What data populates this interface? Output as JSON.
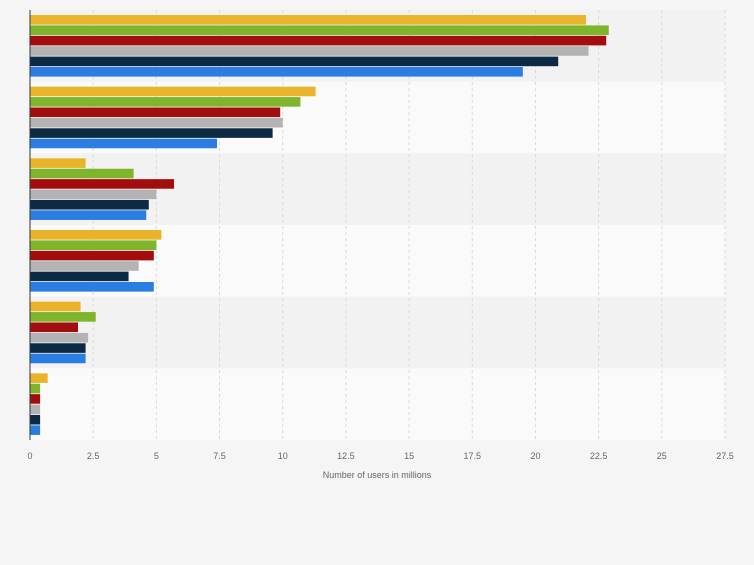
{
  "chart_data": {
    "type": "bar",
    "orientation": "horizontal",
    "title": "",
    "xlabel": "Number of users in millions",
    "ylabel": "",
    "xlim": [
      0,
      27.5
    ],
    "xticks": [
      0,
      2.5,
      5,
      7.5,
      10,
      12.5,
      15,
      17.5,
      20,
      22.5,
      25,
      27.5
    ],
    "xtick_labels": [
      "0",
      "2.5",
      "5",
      "7.5",
      "10",
      "12.5",
      "15",
      "17.5",
      "20",
      "22.5",
      "25",
      "27.5"
    ],
    "grid": true,
    "legend": "none",
    "categories": [
      "",
      "",
      "",
      "",
      "",
      ""
    ],
    "series": [
      {
        "name": "",
        "color": "#e9b42a",
        "values": [
          22.0,
          11.3,
          2.2,
          5.2,
          2.0,
          0.7
        ]
      },
      {
        "name": "",
        "color": "#7fb52b",
        "values": [
          22.9,
          10.7,
          4.1,
          5.0,
          2.6,
          0.4
        ]
      },
      {
        "name": "",
        "color": "#a20e0e",
        "values": [
          22.8,
          9.9,
          5.7,
          4.9,
          1.9,
          0.4
        ]
      },
      {
        "name": "",
        "color": "#b3b3b3",
        "values": [
          22.1,
          10.0,
          5.0,
          4.3,
          2.3,
          0.4
        ]
      },
      {
        "name": "",
        "color": "#0c2a44",
        "values": [
          20.9,
          9.6,
          4.7,
          3.9,
          2.2,
          0.4
        ]
      },
      {
        "name": "",
        "color": "#2a7de1",
        "values": [
          19.5,
          7.4,
          4.6,
          4.9,
          2.2,
          0.4
        ]
      }
    ]
  }
}
